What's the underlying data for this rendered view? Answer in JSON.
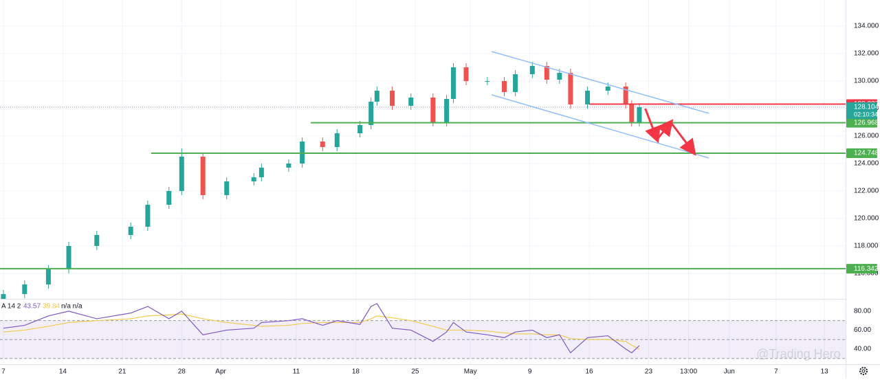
{
  "chart_data": {
    "type": "candlestick",
    "xlim": [
      -0.4,
      99.2
    ],
    "ylim": [
      114.15,
      135.9
    ],
    "xticks": [
      {
        "value": 0,
        "label": "7"
      },
      {
        "value": 7,
        "label": "14"
      },
      {
        "value": 14,
        "label": "21"
      },
      {
        "value": 21,
        "label": "28"
      },
      {
        "value": 25.6,
        "label": "Apr"
      },
      {
        "value": 34.5,
        "label": "11"
      },
      {
        "value": 41.5,
        "label": "18"
      },
      {
        "value": 48.5,
        "label": "25"
      },
      {
        "value": 55,
        "label": "May"
      },
      {
        "value": 62,
        "label": "9"
      },
      {
        "value": 69,
        "label": "16"
      },
      {
        "value": 76,
        "label": "23"
      },
      {
        "value": 80.7,
        "label": "13:00"
      },
      {
        "value": 85.5,
        "label": "Jun"
      },
      {
        "value": 91,
        "label": "7"
      },
      {
        "value": 96.7,
        "label": "13"
      }
    ],
    "yticks": [
      {
        "value": 116,
        "label": "116.000"
      },
      {
        "value": 118,
        "label": "118.000"
      },
      {
        "value": 120,
        "label": "120.000"
      },
      {
        "value": 122,
        "label": "122.000"
      },
      {
        "value": 124,
        "label": "124.000"
      },
      {
        "value": 126,
        "label": "126.000"
      },
      {
        "value": 128,
        "label": "128.000"
      },
      {
        "value": 130,
        "label": "130.000"
      },
      {
        "value": 132,
        "label": "132.000"
      },
      {
        "value": 134,
        "label": "134.000"
      }
    ],
    "grid": true,
    "up_color": "#26a69a",
    "down_color": "#ef5350",
    "x": [
      0,
      2.5,
      5.3,
      7.7,
      11,
      15,
      17,
      19.5,
      21,
      23.5,
      26.3,
      29.5,
      30.4,
      33.6,
      35.2,
      37.6,
      39.3,
      42,
      43.3,
      44,
      45.8,
      48,
      50.6,
      52.2,
      53,
      54.5,
      57,
      59,
      60.3,
      62.3,
      64,
      65.5,
      66.8,
      68.8,
      71.2,
      73.3,
      74,
      74.9
    ],
    "open": [
      113.9,
      114.5,
      115.2,
      116.3,
      118,
      118.8,
      119.4,
      121,
      122,
      124.5,
      121.7,
      122.7,
      123,
      123.7,
      124,
      125.6,
      125.2,
      126.2,
      126.8,
      128.5,
      129.3,
      128.2,
      128.8,
      127,
      128.7,
      131,
      130,
      130,
      129.2,
      130.5,
      131.1,
      130.1,
      130.6,
      128.3,
      129.3,
      129.6,
      128.3,
      127
    ],
    "high": [
      114.8,
      115.5,
      116.6,
      118.3,
      119.1,
      119.7,
      121.3,
      122.3,
      125.1,
      124.8,
      123,
      123.3,
      124,
      124.3,
      125.9,
      125.9,
      126.5,
      127.1,
      128.8,
      129.6,
      129.6,
      129.1,
      129.1,
      129,
      131.3,
      131.3,
      130.3,
      130.3,
      130.8,
      131.4,
      131.4,
      130.9,
      130.9,
      129.6,
      129.9,
      129.9,
      128.6,
      128.4
    ],
    "low": [
      113.6,
      114.2,
      114.9,
      116,
      117.7,
      118.5,
      119.1,
      120.7,
      121.7,
      121.4,
      121.4,
      122.4,
      122.7,
      123.4,
      123.7,
      124.9,
      124.9,
      125.9,
      126.5,
      128.2,
      127.9,
      127.9,
      126.7,
      126.7,
      128.4,
      129.7,
      129.7,
      128.9,
      128.9,
      130.2,
      129.8,
      129.8,
      128,
      128,
      129,
      128,
      126.7,
      126.7
    ],
    "close": [
      114.5,
      115.2,
      116.3,
      118,
      118.8,
      119.4,
      121,
      122,
      124.5,
      121.7,
      122.7,
      123,
      123.7,
      124,
      125.6,
      125.2,
      126.2,
      126.8,
      128.5,
      129.3,
      128.2,
      128.8,
      127,
      128.7,
      131,
      130,
      130,
      129.2,
      130.5,
      131.1,
      130.1,
      130.6,
      128.3,
      129.3,
      129.6,
      128.3,
      127,
      128.1
    ],
    "levels": [
      {
        "value": 128.327,
        "from": 69,
        "color": "#f23645"
      },
      {
        "value": 126.968,
        "from": 36.2,
        "color": "#4caf50"
      },
      {
        "value": 124.748,
        "from": 17.4,
        "color": "#4caf50"
      },
      {
        "value": 116.342,
        "from": -0.4,
        "color": "#4caf50"
      }
    ],
    "last": {
      "value": 128.104,
      "countdown": "02:10:34",
      "color": "#26a69a"
    },
    "channel": {
      "color": "#90bff9",
      "lines": [
        [
          [
            57.5,
            132.15
          ],
          [
            83.1,
            127.65
          ]
        ],
        [
          [
            57.5,
            129
          ],
          [
            83.1,
            124.4
          ]
        ]
      ]
    },
    "arrows": {
      "color": "#f23645",
      "points": [
        [
          75.6,
          128
        ],
        [
          77,
          125.75
        ],
        [
          78.6,
          127
        ],
        [
          81.3,
          124.8
        ]
      ]
    },
    "rsi": {
      "label": "A 14 2",
      "extra": "n/a n/a",
      "color": "#7e57c2",
      "ma_color": "#f2c94c",
      "lim": [
        24,
        93
      ],
      "band": [
        30,
        70
      ],
      "mid": 50,
      "ticks": [
        {
          "value": 40,
          "label": "40.00"
        },
        {
          "value": 60,
          "label": "60.00"
        },
        {
          "value": 80,
          "label": "80.00"
        }
      ],
      "values": [
        62,
        65,
        75,
        80,
        72,
        78,
        85,
        72,
        80,
        55,
        60,
        62,
        68,
        70,
        72,
        65,
        70,
        66,
        85,
        88,
        62,
        60,
        48,
        58,
        68,
        58,
        55,
        52,
        58,
        60,
        52,
        55,
        36,
        52,
        54,
        40,
        36,
        43.57
      ],
      "ma": [
        58,
        60,
        64,
        68,
        70,
        72,
        75,
        76,
        77,
        72,
        68,
        65,
        64,
        65,
        67,
        68,
        68,
        68,
        72,
        75,
        73,
        70,
        64,
        60,
        60,
        60,
        59,
        57,
        56,
        56,
        55,
        55,
        51,
        50,
        50,
        48,
        44,
        39.84
      ]
    },
    "watermark": "@Trading Hero"
  }
}
